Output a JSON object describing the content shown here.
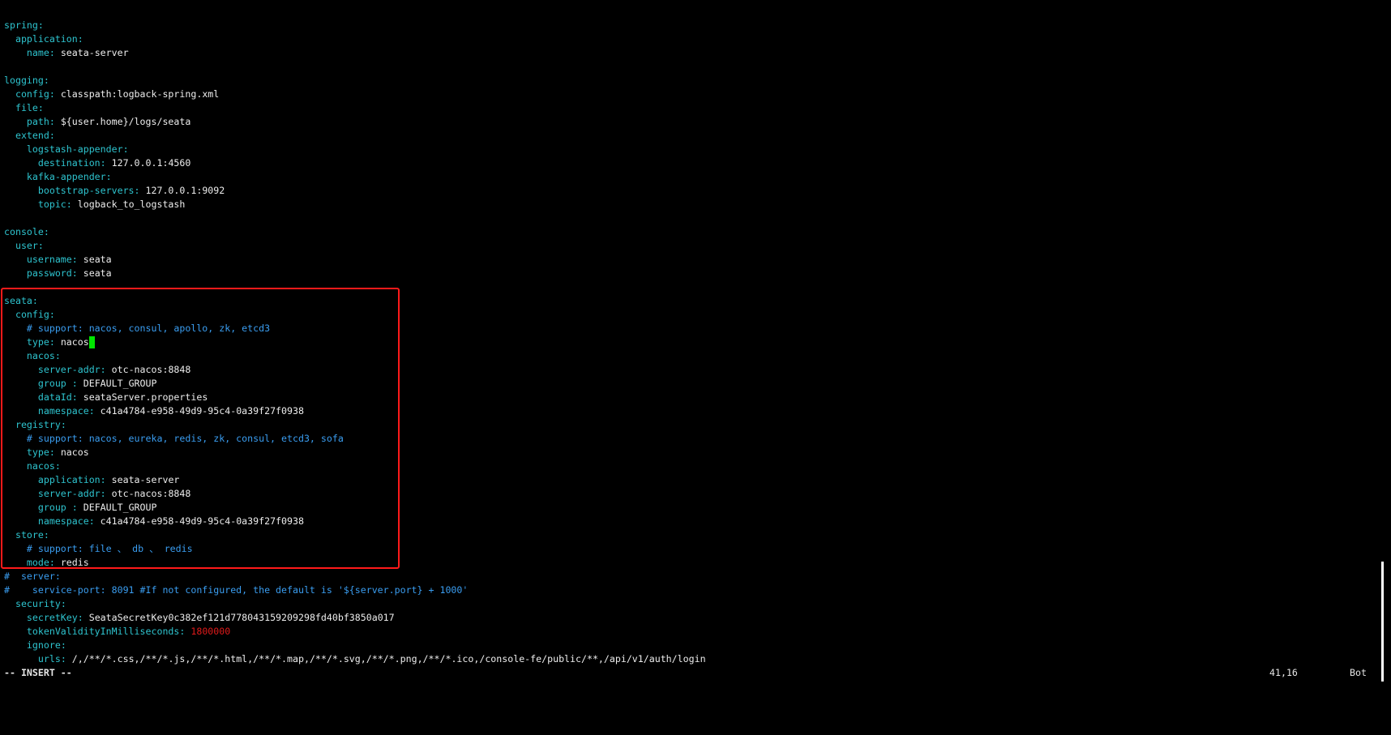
{
  "editor": {
    "lines": [
      [
        {
          "t": "spring",
          "s": "k"
        },
        {
          "t": ":",
          "s": "k"
        }
      ],
      [
        {
          "t": "  application",
          "s": "k"
        },
        {
          "t": ":",
          "s": "k"
        }
      ],
      [
        {
          "t": "    name",
          "s": "k"
        },
        {
          "t": ": ",
          "s": "k"
        },
        {
          "t": "seata-server",
          "s": "v"
        }
      ],
      [],
      [
        {
          "t": "logging",
          "s": "k"
        },
        {
          "t": ":",
          "s": "k"
        }
      ],
      [
        {
          "t": "  config",
          "s": "k"
        },
        {
          "t": ": ",
          "s": "k"
        },
        {
          "t": "classpath:logback-spring.xml",
          "s": "v"
        }
      ],
      [
        {
          "t": "  file",
          "s": "k"
        },
        {
          "t": ":",
          "s": "k"
        }
      ],
      [
        {
          "t": "    path",
          "s": "k"
        },
        {
          "t": ": ",
          "s": "k"
        },
        {
          "t": "${user.home}/logs/seata",
          "s": "v"
        }
      ],
      [
        {
          "t": "  extend",
          "s": "k"
        },
        {
          "t": ":",
          "s": "k"
        }
      ],
      [
        {
          "t": "    logstash-appender",
          "s": "k"
        },
        {
          "t": ":",
          "s": "k"
        }
      ],
      [
        {
          "t": "      destination",
          "s": "k"
        },
        {
          "t": ": ",
          "s": "k"
        },
        {
          "t": "127.0.0.1:4560",
          "s": "v"
        }
      ],
      [
        {
          "t": "    kafka-appender",
          "s": "k"
        },
        {
          "t": ":",
          "s": "k"
        }
      ],
      [
        {
          "t": "      bootstrap-servers",
          "s": "k"
        },
        {
          "t": ": ",
          "s": "k"
        },
        {
          "t": "127.0.0.1:9092",
          "s": "v"
        }
      ],
      [
        {
          "t": "      topic",
          "s": "k"
        },
        {
          "t": ": ",
          "s": "k"
        },
        {
          "t": "logback_to_logstash",
          "s": "v"
        }
      ],
      [],
      [
        {
          "t": "console",
          "s": "k"
        },
        {
          "t": ":",
          "s": "k"
        }
      ],
      [
        {
          "t": "  user",
          "s": "k"
        },
        {
          "t": ":",
          "s": "k"
        }
      ],
      [
        {
          "t": "    username",
          "s": "k"
        },
        {
          "t": ": ",
          "s": "k"
        },
        {
          "t": "seata",
          "s": "v"
        }
      ],
      [
        {
          "t": "    password",
          "s": "k"
        },
        {
          "t": ": ",
          "s": "k"
        },
        {
          "t": "seata",
          "s": "v"
        }
      ],
      [],
      [
        {
          "t": "seata",
          "s": "k"
        },
        {
          "t": ":",
          "s": "k"
        }
      ],
      [
        {
          "t": "  config",
          "s": "k"
        },
        {
          "t": ":",
          "s": "k"
        }
      ],
      [
        {
          "t": "    # support: nacos, consul, apollo, zk, etcd3",
          "s": "c"
        }
      ],
      [
        {
          "t": "    type",
          "s": "k"
        },
        {
          "t": ": ",
          "s": "k"
        },
        {
          "t": "nacos",
          "s": "v"
        },
        {
          "cursor": true
        }
      ],
      [
        {
          "t": "    nacos",
          "s": "k"
        },
        {
          "t": ":",
          "s": "k"
        }
      ],
      [
        {
          "t": "      server-addr",
          "s": "k"
        },
        {
          "t": ": ",
          "s": "k"
        },
        {
          "t": "otc-nacos:8848",
          "s": "v"
        }
      ],
      [
        {
          "t": "      group ",
          "s": "k"
        },
        {
          "t": ": ",
          "s": "k"
        },
        {
          "t": "DEFAULT_GROUP",
          "s": "v"
        }
      ],
      [
        {
          "t": "      dataId",
          "s": "k"
        },
        {
          "t": ": ",
          "s": "k"
        },
        {
          "t": "seataServer.properties",
          "s": "v"
        }
      ],
      [
        {
          "t": "      namespace",
          "s": "k"
        },
        {
          "t": ": ",
          "s": "k"
        },
        {
          "t": "c41a4784-e958-49d9-95c4-0a39f27f0938",
          "s": "v"
        }
      ],
      [
        {
          "t": "  registry",
          "s": "k"
        },
        {
          "t": ":",
          "s": "k"
        }
      ],
      [
        {
          "t": "    # support: nacos, eureka, redis, zk, consul, etcd3, sofa",
          "s": "c"
        }
      ],
      [
        {
          "t": "    type",
          "s": "k"
        },
        {
          "t": ": ",
          "s": "k"
        },
        {
          "t": "nacos",
          "s": "v"
        }
      ],
      [
        {
          "t": "    nacos",
          "s": "k"
        },
        {
          "t": ":",
          "s": "k"
        }
      ],
      [
        {
          "t": "      application",
          "s": "k"
        },
        {
          "t": ": ",
          "s": "k"
        },
        {
          "t": "seata-server",
          "s": "v"
        }
      ],
      [
        {
          "t": "      server-addr",
          "s": "k"
        },
        {
          "t": ": ",
          "s": "k"
        },
        {
          "t": "otc-nacos:8848",
          "s": "v"
        }
      ],
      [
        {
          "t": "      group ",
          "s": "k"
        },
        {
          "t": ": ",
          "s": "k"
        },
        {
          "t": "DEFAULT_GROUP",
          "s": "v"
        }
      ],
      [
        {
          "t": "      namespace",
          "s": "k"
        },
        {
          "t": ": ",
          "s": "k"
        },
        {
          "t": "c41a4784-e958-49d9-95c4-0a39f27f0938",
          "s": "v"
        }
      ],
      [
        {
          "t": "  store",
          "s": "k"
        },
        {
          "t": ":",
          "s": "k"
        }
      ],
      [
        {
          "t": "    # support: file 、 db 、 redis",
          "s": "c"
        }
      ],
      [
        {
          "t": "    mode",
          "s": "k"
        },
        {
          "t": ": ",
          "s": "k"
        },
        {
          "t": "redis",
          "s": "v"
        }
      ],
      [
        {
          "t": "#  server:",
          "s": "c"
        }
      ],
      [
        {
          "t": "#    service-port: 8091 #If not configured, the default is '${server.port} + 1000'",
          "s": "c"
        }
      ],
      [
        {
          "t": "  security",
          "s": "k"
        },
        {
          "t": ":",
          "s": "k"
        }
      ],
      [
        {
          "t": "    secretKey",
          "s": "k"
        },
        {
          "t": ": ",
          "s": "k"
        },
        {
          "t": "SeataSecretKey0c382ef121d778043159209298fd40bf3850a017",
          "s": "v"
        }
      ],
      [
        {
          "t": "    tokenValidityInMilliseconds",
          "s": "k"
        },
        {
          "t": ": ",
          "s": "k"
        },
        {
          "t": "1800000",
          "s": "r"
        }
      ],
      [
        {
          "t": "    ignore",
          "s": "k"
        },
        {
          "t": ":",
          "s": "k"
        }
      ],
      [
        {
          "t": "      urls",
          "s": "k"
        },
        {
          "t": ": ",
          "s": "k"
        },
        {
          "t": "/,/**/*.css,/**/*.js,/**/*.html,/**/*.map,/**/*.svg,/**/*.png,/**/*.ico,/console-fe/public/**,/api/v1/auth/login",
          "s": "v"
        }
      ]
    ]
  },
  "status": {
    "mode": "-- INSERT --",
    "position": "41,16",
    "scroll": "Bot"
  },
  "colors": {
    "background": "#000000",
    "key": "#2ec4cf",
    "comment": "#3a9df0",
    "value": "#ededed",
    "number_highlight": "#e01a1a",
    "cursor": "#00e600",
    "highlight_box": "#ff1a1a"
  }
}
